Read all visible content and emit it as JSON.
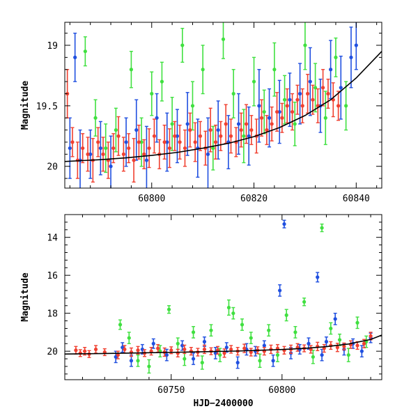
{
  "chart_data": [
    {
      "type": "scatter",
      "panel": "top",
      "title": "",
      "xlabel": "",
      "ylabel": "Magnitude",
      "xlim": [
        60783,
        60845
      ],
      "ylim": [
        20.18,
        18.81
      ],
      "y_inverted": true,
      "xticks": [
        60800,
        60820,
        60840
      ],
      "yticks": [
        19,
        19.5,
        20
      ],
      "grid": false,
      "legend": "none",
      "series": [
        {
          "color": "#2050e0",
          "marker": "circle-errorbar",
          "x": [
            60784,
            60785,
            60786,
            60788,
            60790,
            60792,
            60795,
            60797,
            60799,
            60801,
            60803,
            60805,
            60807,
            60809,
            60811,
            60813,
            60815,
            60817,
            60819,
            60821,
            60823,
            60825,
            60827,
            60829,
            60831,
            60833,
            60835,
            60837,
            60839,
            60840
          ],
          "y": [
            19.85,
            19.1,
            19.95,
            19.9,
            19.85,
            20.0,
            19.8,
            19.7,
            19.95,
            19.6,
            19.8,
            19.75,
            19.65,
            19.85,
            19.9,
            19.7,
            19.8,
            19.65,
            19.75,
            19.5,
            19.6,
            19.55,
            19.45,
            19.4,
            19.3,
            19.5,
            19.2,
            19.35,
            19.1,
            19.0
          ],
          "err": [
            0.25,
            0.2,
            0.25,
            0.2,
            0.22,
            0.25,
            0.2,
            0.25,
            0.28,
            0.2,
            0.24,
            0.22,
            0.26,
            0.24,
            0.3,
            0.24,
            0.22,
            0.25,
            0.24,
            0.3,
            0.24,
            0.26,
            0.22,
            0.25,
            0.28,
            0.22,
            0.24,
            0.26,
            0.25,
            0.2
          ]
        },
        {
          "color": "#40e040",
          "marker": "circle-errorbar",
          "x": [
            60787,
            60789,
            60791,
            60793,
            60796,
            60798,
            60800,
            60802,
            60804,
            60806,
            60808,
            60810,
            60812,
            60814,
            60816,
            60818,
            60820,
            60822,
            60824,
            60826,
            60828,
            60830,
            60832,
            60834,
            60836,
            60838
          ],
          "y": [
            19.05,
            19.6,
            19.85,
            19.7,
            19.2,
            19.8,
            19.4,
            19.3,
            19.65,
            19.0,
            19.5,
            19.2,
            19.85,
            18.95,
            19.4,
            19.75,
            19.3,
            19.55,
            19.2,
            19.45,
            19.65,
            19.0,
            19.35,
            19.6,
            19.1,
            19.5
          ],
          "err": [
            0.12,
            0.15,
            0.2,
            0.18,
            0.15,
            0.2,
            0.18,
            0.16,
            0.22,
            0.14,
            0.2,
            0.2,
            0.18,
            0.16,
            0.2,
            0.22,
            0.2,
            0.18,
            0.22,
            0.2,
            0.18,
            0.2,
            0.2,
            0.22,
            0.16,
            0.2
          ]
        },
        {
          "color": "#f04030",
          "marker": "circle-errorbar",
          "x": [
            60783.5,
            60784.5,
            60785.5,
            60786.5,
            60787.5,
            60788.5,
            60789.5,
            60790.5,
            60791.5,
            60792.5,
            60793.5,
            60794.5,
            60795.5,
            60796.5,
            60797.5,
            60798.5,
            60799.5,
            60800.5,
            60801.5,
            60802.5,
            60803.5,
            60804.5,
            60805.5,
            60806.5,
            60807.5,
            60808.5,
            60809.5,
            60810.5,
            60811.5,
            60812.5,
            60813.5,
            60814.5,
            60815.5,
            60816.5,
            60817.5,
            60818.5,
            60819.5,
            60820.5,
            60821.5,
            60822.5,
            60823.5,
            60824.5,
            60825.5,
            60826.5,
            60827.5,
            60828.5,
            60829.5,
            60830.5,
            60831.5,
            60832.5,
            60833.5,
            60834.5,
            60835.5,
            60836.5
          ],
          "y": [
            19.4,
            19.8,
            19.95,
            19.85,
            19.9,
            19.95,
            19.8,
            19.9,
            19.95,
            19.85,
            19.75,
            19.9,
            19.85,
            19.95,
            19.8,
            19.9,
            19.85,
            19.75,
            19.9,
            19.8,
            19.85,
            19.75,
            19.8,
            19.85,
            19.7,
            19.8,
            19.75,
            19.85,
            19.7,
            19.8,
            19.75,
            19.65,
            19.75,
            19.8,
            19.7,
            19.65,
            19.7,
            19.75,
            19.6,
            19.7,
            19.65,
            19.55,
            19.6,
            19.5,
            19.55,
            19.45,
            19.5,
            19.4,
            19.45,
            19.5,
            19.35,
            19.4,
            19.45,
            19.5
          ],
          "err": [
            0.2,
            0.12,
            0.15,
            0.12,
            0.14,
            0.18,
            0.12,
            0.14,
            0.15,
            0.12,
            0.16,
            0.14,
            0.12,
            0.18,
            0.14,
            0.12,
            0.16,
            0.14,
            0.12,
            0.14,
            0.16,
            0.12,
            0.14,
            0.15,
            0.14,
            0.16,
            0.12,
            0.14,
            0.18,
            0.14,
            0.12,
            0.16,
            0.14,
            0.12,
            0.14,
            0.16,
            0.12,
            0.14,
            0.15,
            0.12,
            0.14,
            0.16,
            0.12,
            0.14,
            0.15,
            0.12,
            0.14,
            0.16,
            0.12,
            0.14,
            0.15,
            0.12,
            0.14,
            0.12
          ]
        }
      ],
      "model_curve": {
        "color": "#000000",
        "x": [
          60783,
          60790,
          60795,
          60800,
          60805,
          60810,
          60815,
          60820,
          60825,
          60830,
          60835,
          60840,
          60845
        ],
        "y": [
          19.96,
          19.945,
          19.93,
          19.91,
          19.885,
          19.85,
          19.81,
          19.755,
          19.68,
          19.58,
          19.45,
          19.27,
          19.05
        ]
      }
    },
    {
      "type": "scatter",
      "panel": "bottom",
      "title": "",
      "xlabel": "HJD−2400000",
      "ylabel": "Magnitude",
      "xlim": [
        60702,
        60845
      ],
      "ylim": [
        21.5,
        12.8
      ],
      "y_inverted": true,
      "xticks": [
        60750,
        60800
      ],
      "yticks": [
        14,
        16,
        18,
        20
      ],
      "grid": false,
      "legend": "none",
      "series": [
        {
          "color": "#2050e0",
          "marker": "circle-errorbar",
          "x": [
            60725,
            60728,
            60732,
            60737,
            60742,
            60748,
            60755,
            60760,
            60765,
            60770,
            60775,
            60780,
            60784,
            60788,
            60792,
            60796,
            60799,
            60801,
            60804,
            60808,
            60812,
            60816,
            60818,
            60820,
            60824,
            60828,
            60832,
            60836,
            60840
          ],
          "y": [
            20.3,
            19.8,
            20.5,
            19.9,
            19.6,
            20.2,
            19.7,
            20.4,
            19.5,
            20.1,
            19.8,
            20.6,
            19.9,
            20.0,
            19.7,
            20.5,
            16.8,
            13.3,
            20.1,
            19.9,
            19.6,
            16.1,
            20.2,
            19.5,
            18.3,
            19.9,
            19.6,
            20.0,
            19.3
          ],
          "err": [
            0.3,
            0.25,
            0.3,
            0.25,
            0.25,
            0.3,
            0.25,
            0.3,
            0.25,
            0.3,
            0.25,
            0.3,
            0.3,
            0.25,
            0.25,
            0.3,
            0.3,
            0.2,
            0.3,
            0.25,
            0.3,
            0.25,
            0.3,
            0.25,
            0.3,
            0.3,
            0.25,
            0.3,
            0.25
          ]
        },
        {
          "color": "#40e040",
          "marker": "circle-errorbar",
          "x": [
            60727,
            60731,
            60735,
            60740,
            60745,
            60749,
            60753,
            60756,
            60760,
            60764,
            60768,
            60772,
            60776,
            60778,
            60782,
            60786,
            60790,
            60794,
            60798,
            60802,
            60806,
            60810,
            60814,
            60818,
            60822,
            60826,
            60830,
            60834,
            60838
          ],
          "y": [
            18.6,
            19.3,
            20.5,
            20.8,
            20.0,
            17.8,
            19.6,
            20.4,
            19.0,
            20.6,
            18.9,
            20.2,
            17.7,
            18.0,
            18.6,
            19.3,
            20.5,
            18.9,
            20.2,
            18.1,
            19.0,
            17.4,
            20.3,
            13.5,
            18.8,
            19.4,
            20.2,
            18.5,
            19.5
          ],
          "err": [
            0.25,
            0.3,
            0.3,
            0.35,
            0.3,
            0.2,
            0.3,
            0.35,
            0.3,
            0.35,
            0.3,
            0.35,
            0.4,
            0.3,
            0.3,
            0.3,
            0.35,
            0.3,
            0.35,
            0.3,
            0.3,
            0.2,
            0.35,
            0.2,
            0.3,
            0.3,
            0.35,
            0.3,
            0.3
          ]
        },
        {
          "color": "#f04030",
          "marker": "circle-errorbar",
          "x": [
            60707,
            60709,
            60711,
            60713,
            60716,
            60720,
            60726,
            60729,
            60732,
            60735,
            60738,
            60741,
            60744,
            60747,
            60750,
            60753,
            60756,
            60759,
            60762,
            60765,
            60768,
            60771,
            60774,
            60777,
            60780,
            60783,
            60786,
            60789,
            60792,
            60795,
            60798,
            60801,
            60804,
            60807,
            60810,
            60813,
            60816,
            60819,
            60822,
            60825,
            60828,
            60831,
            60834,
            60837,
            60840
          ],
          "y": [
            19.95,
            20.1,
            20.0,
            20.15,
            19.9,
            20.05,
            20.2,
            19.9,
            20.05,
            19.95,
            20.1,
            20.0,
            19.85,
            20.05,
            19.95,
            20.1,
            19.9,
            20.0,
            20.05,
            19.9,
            20.0,
            19.95,
            20.1,
            19.9,
            20.0,
            19.85,
            20.05,
            19.95,
            20.0,
            19.9,
            19.85,
            19.95,
            19.9,
            19.8,
            19.85,
            19.9,
            19.75,
            19.85,
            19.7,
            19.8,
            19.75,
            19.65,
            19.7,
            19.6,
            19.2
          ],
          "err": [
            0.2,
            0.18,
            0.2,
            0.18,
            0.2,
            0.18,
            0.2,
            0.2,
            0.22,
            0.2,
            0.18,
            0.2,
            0.2,
            0.22,
            0.18,
            0.2,
            0.22,
            0.2,
            0.2,
            0.22,
            0.18,
            0.2,
            0.22,
            0.2,
            0.2,
            0.22,
            0.2,
            0.18,
            0.2,
            0.22,
            0.2,
            0.2,
            0.22,
            0.2,
            0.18,
            0.2,
            0.22,
            0.2,
            0.2,
            0.22,
            0.18,
            0.2,
            0.2,
            0.22,
            0.2
          ]
        }
      ],
      "model_curve": {
        "color": "#000000",
        "x": [
          60702,
          60720,
          60740,
          60760,
          60780,
          60800,
          60810,
          60820,
          60830,
          60840,
          60845
        ],
        "y": [
          20.15,
          20.12,
          20.08,
          20.04,
          19.99,
          19.91,
          19.85,
          19.76,
          19.62,
          19.38,
          19.15
        ]
      }
    }
  ]
}
